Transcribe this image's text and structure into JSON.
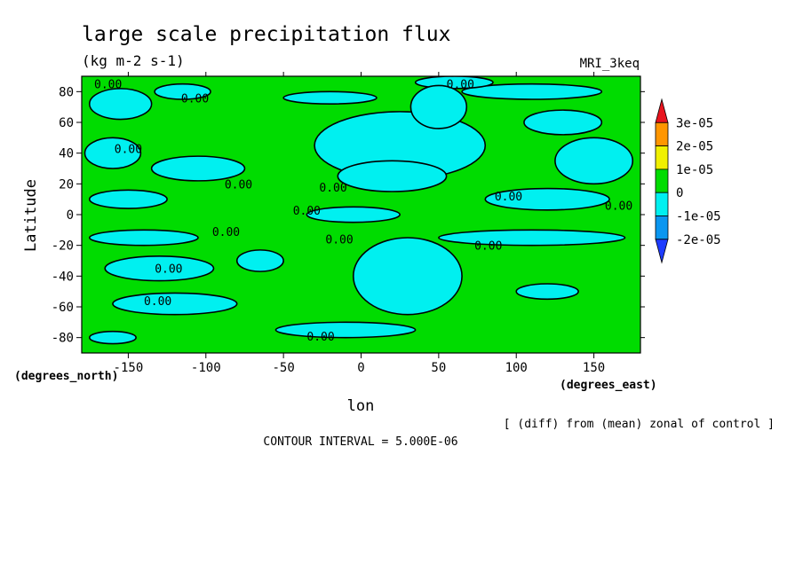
{
  "chart_data": {
    "type": "heatmap",
    "title": "large scale precipitation flux",
    "units": "(kg m-2 s-1)",
    "model": "MRI_3keq",
    "xlabel": "lon",
    "ylabel": "Latitude",
    "x_units": "(degrees_east)",
    "y_units": "(degrees_north)",
    "xlim": [
      -180,
      180
    ],
    "ylim": [
      -90,
      90
    ],
    "x_ticks": [
      -150,
      -100,
      -50,
      0,
      50,
      100,
      150
    ],
    "y_ticks": [
      -80,
      -60,
      -40,
      -20,
      0,
      20,
      40,
      60,
      80
    ],
    "x_tick_labels": [
      "-150",
      "-100",
      "-50",
      "0",
      "50",
      "100",
      "150"
    ],
    "y_tick_labels": [
      "-80",
      "-60",
      "-40",
      "-20",
      "0",
      "20",
      "40",
      "60",
      "80"
    ],
    "contour_interval": "CONTOUR INTERVAL = 5.000E-06",
    "note": "[ (diff) from (mean) zonal of control ]",
    "colorbar": {
      "levels": [
        "3e-05",
        "2e-05",
        "1e-05",
        "0",
        "-1e-05",
        "-2e-05"
      ],
      "colors": [
        "#e8141e",
        "#ff9600",
        "#f0f000",
        "#00dc00",
        "#00f0f0",
        "#0a96f0",
        "#1e3cff"
      ]
    },
    "colors": {
      "positive_bin": "#00dc00",
      "negative_bin": "#00f0f0",
      "contour": "#000000"
    },
    "regions": [
      {
        "name": "n-high-band-west",
        "cx": -155,
        "cy": 72,
        "rx": 20,
        "ry": 10,
        "value": -5e-06
      },
      {
        "name": "n-high-band-w2",
        "cx": -115,
        "cy": 80,
        "rx": 18,
        "ry": 5,
        "value": -5e-06
      },
      {
        "name": "n-high-center",
        "cx": -20,
        "cy": 76,
        "rx": 30,
        "ry": 4,
        "value": -5e-06
      },
      {
        "name": "n-high-east",
        "cx": 110,
        "cy": 80,
        "rx": 45,
        "ry": 5,
        "value": -5e-06
      },
      {
        "name": "n-pole-strip",
        "cx": 60,
        "cy": 86,
        "rx": 25,
        "ry": 4,
        "value": -5e-06
      },
      {
        "name": "atlantic-north",
        "cx": 25,
        "cy": 45,
        "rx": 55,
        "ry": 22,
        "value": -5e-06
      },
      {
        "name": "euro-north",
        "cx": 50,
        "cy": 70,
        "rx": 18,
        "ry": 14,
        "value": -5e-06
      },
      {
        "name": "north-central-tongue",
        "cx": 20,
        "cy": 25,
        "rx": 35,
        "ry": 10,
        "value": -5e-06
      },
      {
        "name": "pacific-north-west",
        "cx": -160,
        "cy": 40,
        "rx": 18,
        "ry": 10,
        "value": -5e-06
      },
      {
        "name": "pacific-north-mid",
        "cx": -105,
        "cy": 30,
        "rx": 30,
        "ry": 8,
        "value": -5e-06
      },
      {
        "name": "n-mid-east",
        "cx": 150,
        "cy": 35,
        "rx": 25,
        "ry": 15,
        "value": -5e-06
      },
      {
        "name": "n-east-2",
        "cx": 130,
        "cy": 60,
        "rx": 25,
        "ry": 8,
        "value": -5e-06
      },
      {
        "name": "subtrop-west",
        "cx": -150,
        "cy": 10,
        "rx": 25,
        "ry": 6,
        "value": -5e-06
      },
      {
        "name": "equator-center",
        "cx": -5,
        "cy": 0,
        "rx": 30,
        "ry": 5,
        "value": -5e-06
      },
      {
        "name": "equator-east",
        "cx": 120,
        "cy": 10,
        "rx": 40,
        "ry": 7,
        "value": -5e-06
      },
      {
        "name": "s-subtrop-band",
        "cx": -140,
        "cy": -15,
        "rx": 35,
        "ry": 5,
        "value": -5e-06
      },
      {
        "name": "s-subtrop-east",
        "cx": 110,
        "cy": -15,
        "rx": 60,
        "ry": 5,
        "value": -5e-06
      },
      {
        "name": "south-atlantic",
        "cx": 30,
        "cy": -40,
        "rx": 35,
        "ry": 25,
        "value": -5e-06
      },
      {
        "name": "south-west-1",
        "cx": -130,
        "cy": -35,
        "rx": 35,
        "ry": 8,
        "value": -5e-06
      },
      {
        "name": "south-west-2",
        "cx": -65,
        "cy": -30,
        "rx": 15,
        "ry": 7,
        "value": -5e-06
      },
      {
        "name": "south-mid-1",
        "cx": -120,
        "cy": -58,
        "rx": 40,
        "ry": 7,
        "value": -5e-06
      },
      {
        "name": "south-high-center",
        "cx": -10,
        "cy": -75,
        "rx": 45,
        "ry": 5,
        "value": -5e-06
      },
      {
        "name": "south-high-west",
        "cx": -160,
        "cy": -80,
        "rx": 15,
        "ry": 4,
        "value": -5e-06
      },
      {
        "name": "south-east-mid",
        "cx": 120,
        "cy": -50,
        "rx": 20,
        "ry": 5,
        "value": -5e-06
      }
    ],
    "contour_labels": [
      {
        "text": "0.00",
        "lon": -163,
        "lat": 85
      },
      {
        "text": "0.00",
        "lon": -107,
        "lat": 76
      },
      {
        "text": "0.00",
        "lon": 64,
        "lat": 85
      },
      {
        "text": "0.00",
        "lon": -150,
        "lat": 43
      },
      {
        "text": "0.00",
        "lon": -79,
        "lat": 20
      },
      {
        "text": "0.00",
        "lon": -18,
        "lat": 18
      },
      {
        "text": "0.00",
        "lon": 95,
        "lat": 12
      },
      {
        "text": "0.00",
        "lon": 166,
        "lat": 6
      },
      {
        "text": "0.00",
        "lon": -35,
        "lat": 3
      },
      {
        "text": "0.00",
        "lon": -87,
        "lat": -11
      },
      {
        "text": "0.00",
        "lon": -14,
        "lat": -16
      },
      {
        "text": "0.00",
        "lon": 82,
        "lat": -20
      },
      {
        "text": "0.00",
        "lon": -124,
        "lat": -35
      },
      {
        "text": "0.00",
        "lon": -131,
        "lat": -56
      },
      {
        "text": "0.00",
        "lon": -26,
        "lat": -79
      }
    ]
  }
}
